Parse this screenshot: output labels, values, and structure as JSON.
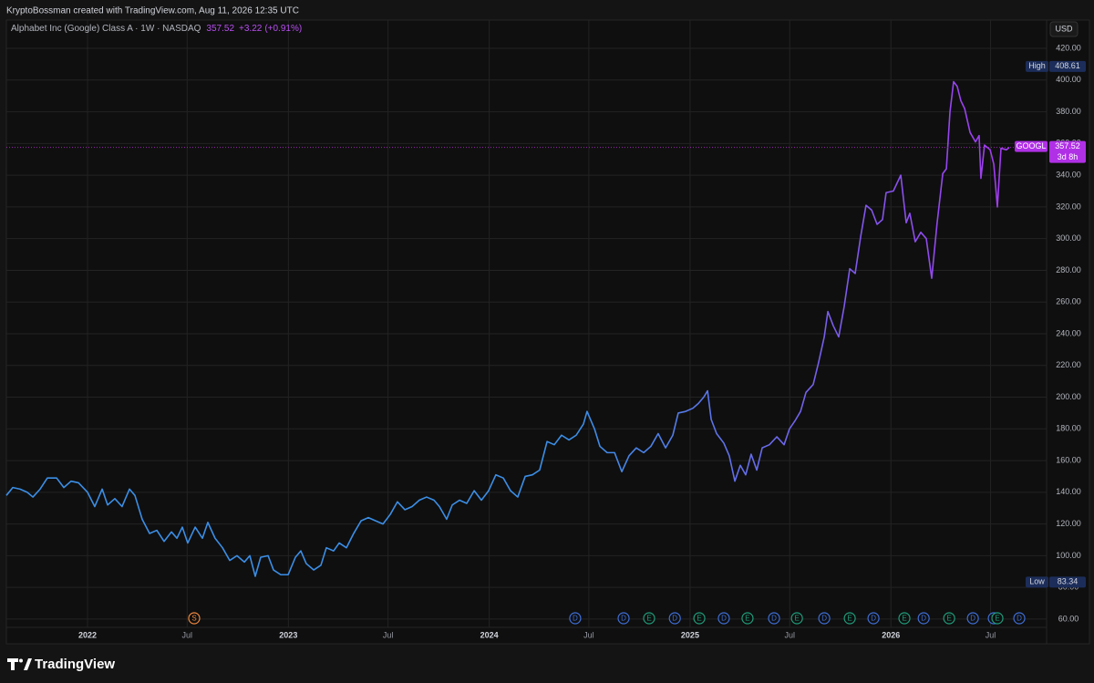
{
  "chart_data": {
    "type": "line",
    "credit": "KryptoBossman created with TradingView.com, Aug 11, 2026 12:35 UTC",
    "title": "Alphabet Inc (Google) Class A · 1W · NASDAQ",
    "last_price": 357.52,
    "change": "+3.22",
    "change_pct": "(+0.91%)",
    "currency": "USD",
    "countdown": "3d 8h",
    "brand": "TradingView",
    "high_label": "High",
    "high": 408.61,
    "low_label": "Low",
    "low": 83.34,
    "colors": [
      "#3b8ee6",
      "#a13df0"
    ],
    "price_line_color": "#9c27b0",
    "grid": true,
    "x": [
      2021.596,
      2021.628,
      2021.664,
      2021.7,
      2021.728,
      2021.764,
      2021.8,
      2021.846,
      2021.882,
      2021.918,
      2021.955,
      2022.0,
      2022.036,
      2022.073,
      2022.1,
      2022.136,
      2022.172,
      2022.209,
      2022.236,
      2022.272,
      2022.309,
      2022.345,
      2022.381,
      2022.418,
      2022.445,
      2022.472,
      2022.499,
      2022.536,
      2022.572,
      2022.599,
      2022.635,
      2022.672,
      2022.708,
      2022.744,
      2022.781,
      2022.808,
      2022.835,
      2022.862,
      2022.899,
      2022.926,
      2022.962,
      2022.999,
      2023.035,
      2023.062,
      2023.089,
      2023.126,
      2023.162,
      2023.189,
      2023.225,
      2023.253,
      2023.289,
      2023.325,
      2023.362,
      2023.398,
      2023.434,
      2023.471,
      2023.507,
      2023.543,
      2023.58,
      2023.616,
      2023.652,
      2023.688,
      2023.725,
      2023.752,
      2023.788,
      2023.816,
      2023.852,
      2023.888,
      2023.925,
      2023.961,
      2023.997,
      2024.033,
      2024.07,
      2024.106,
      2024.142,
      2024.179,
      2024.215,
      2024.251,
      2024.288,
      2024.324,
      2024.36,
      2024.397,
      2024.433,
      2024.469,
      2024.487,
      2024.524,
      2024.551,
      2024.587,
      2024.624,
      2024.66,
      2024.696,
      2024.732,
      2024.769,
      2024.805,
      2024.841,
      2024.878,
      2024.914,
      2024.941,
      2024.978,
      2025.014,
      2025.041,
      2025.068,
      2025.087,
      2025.105,
      2025.132,
      2025.168,
      2025.195,
      2025.223,
      2025.25,
      2025.277,
      2025.304,
      2025.332,
      2025.359,
      2025.395,
      2025.432,
      2025.468,
      2025.495,
      2025.522,
      2025.55,
      2025.577,
      2025.613,
      2025.64,
      2025.668,
      2025.686,
      2025.713,
      2025.74,
      2025.767,
      2025.795,
      2025.822,
      2025.849,
      2025.876,
      2025.904,
      2025.931,
      2025.958,
      2025.976,
      2026.012,
      2026.049,
      2026.076,
      2026.094,
      2026.121,
      2026.149,
      2026.176,
      2026.203,
      2026.23,
      2026.258,
      2026.276,
      2026.294,
      2026.312,
      2026.33,
      2026.348,
      2026.367,
      2026.394,
      2026.421,
      2026.439,
      2026.448,
      2026.466,
      2026.494,
      2026.512,
      2026.53,
      2026.548,
      2026.575,
      2026.589
    ],
    "series": [
      {
        "name": "GOOGL",
        "values": [
          138,
          143,
          142,
          140,
          137,
          142,
          149,
          149,
          143,
          147,
          146,
          140,
          131,
          142,
          132,
          136,
          131,
          142,
          138,
          123,
          114,
          116,
          109,
          115,
          111,
          118,
          108,
          118,
          111,
          121,
          111,
          105,
          97,
          100,
          96,
          100,
          87,
          99,
          100,
          91,
          88,
          88,
          99,
          103,
          95,
          91,
          94,
          105,
          103,
          108,
          105,
          114,
          122,
          124,
          122,
          120,
          126,
          134,
          129,
          131,
          135,
          137,
          135,
          131,
          123,
          132,
          135,
          133,
          141,
          135,
          141,
          151,
          149,
          141,
          137,
          150,
          151,
          154,
          172,
          170,
          176,
          173,
          176,
          183,
          191,
          180,
          169,
          165,
          165,
          153,
          163,
          168,
          165,
          169,
          177,
          168,
          176,
          190,
          191,
          193,
          196,
          200,
          204,
          186,
          177,
          171,
          163,
          147,
          157,
          151,
          164,
          154,
          168,
          170,
          175,
          170,
          180,
          185,
          191,
          203,
          208,
          222,
          238,
          254,
          245,
          238,
          257,
          281,
          278,
          301,
          321,
          318,
          309,
          312,
          329,
          330,
          340,
          310,
          316,
          298,
          304,
          300,
          275,
          310,
          341,
          344,
          380,
          399,
          396,
          387,
          382,
          367,
          361,
          365,
          338,
          359,
          356,
          347,
          320,
          357,
          356,
          357.52
        ]
      }
    ],
    "xlim": [
      2021.596,
      2026.775
    ],
    "xticks": [
      {
        "value": 2022,
        "label": "2022"
      },
      {
        "value": 2022.496,
        "label": "Jul"
      },
      {
        "value": 2023,
        "label": "2023"
      },
      {
        "value": 2023.496,
        "label": "Jul"
      },
      {
        "value": 2024,
        "label": "2024"
      },
      {
        "value": 2024.496,
        "label": "Jul"
      },
      {
        "value": 2025,
        "label": "2025"
      },
      {
        "value": 2025.496,
        "label": "Jul"
      },
      {
        "value": 2026,
        "label": "2026"
      },
      {
        "value": 2026.496,
        "label": "Jul"
      }
    ],
    "ylim": [
      45,
      427.5
    ],
    "yticks": [
      {
        "value": 60,
        "label": "60.00"
      },
      {
        "value": 80,
        "label": "80.00"
      },
      {
        "value": 100,
        "label": "100.00"
      },
      {
        "value": 120,
        "label": "120.00"
      },
      {
        "value": 140,
        "label": "140.00"
      },
      {
        "value": 160,
        "label": "160.00"
      },
      {
        "value": 180,
        "label": "180.00"
      },
      {
        "value": 200,
        "label": "200.00"
      },
      {
        "value": 220,
        "label": "220.00"
      },
      {
        "value": 240,
        "label": "240.00"
      },
      {
        "value": 260,
        "label": "260.00"
      },
      {
        "value": 280,
        "label": "280.00"
      },
      {
        "value": 300,
        "label": "300.00"
      },
      {
        "value": 320,
        "label": "320.00"
      },
      {
        "value": 340,
        "label": "340.00"
      },
      {
        "value": 360,
        "label": "360.00"
      },
      {
        "value": 380,
        "label": "380.00"
      },
      {
        "value": 400,
        "label": "400.00"
      },
      {
        "value": 420,
        "label": "420.00"
      }
    ],
    "event_colors": {
      "S": "#f0883e",
      "D": "#3f6fd8",
      "E": "#1f9d7a"
    },
    "events": [
      {
        "x": 2022.531,
        "label": "S"
      },
      {
        "x": 2024.428,
        "label": "D"
      },
      {
        "x": 2024.669,
        "label": "D"
      },
      {
        "x": 2024.796,
        "label": "E"
      },
      {
        "x": 2024.924,
        "label": "D"
      },
      {
        "x": 2025.046,
        "label": "E"
      },
      {
        "x": 2025.168,
        "label": "D"
      },
      {
        "x": 2025.286,
        "label": "E"
      },
      {
        "x": 2025.418,
        "label": "D"
      },
      {
        "x": 2025.532,
        "label": "E"
      },
      {
        "x": 2025.668,
        "label": "D"
      },
      {
        "x": 2025.795,
        "label": "E"
      },
      {
        "x": 2025.913,
        "label": "D"
      },
      {
        "x": 2026.067,
        "label": "E"
      },
      {
        "x": 2026.163,
        "label": "D"
      },
      {
        "x": 2026.29,
        "label": "E"
      },
      {
        "x": 2026.408,
        "label": "D"
      },
      {
        "x": 2026.512,
        "label": "D"
      },
      {
        "x": 2026.53,
        "label": "E"
      },
      {
        "x": 2026.639,
        "label": "D"
      }
    ]
  }
}
